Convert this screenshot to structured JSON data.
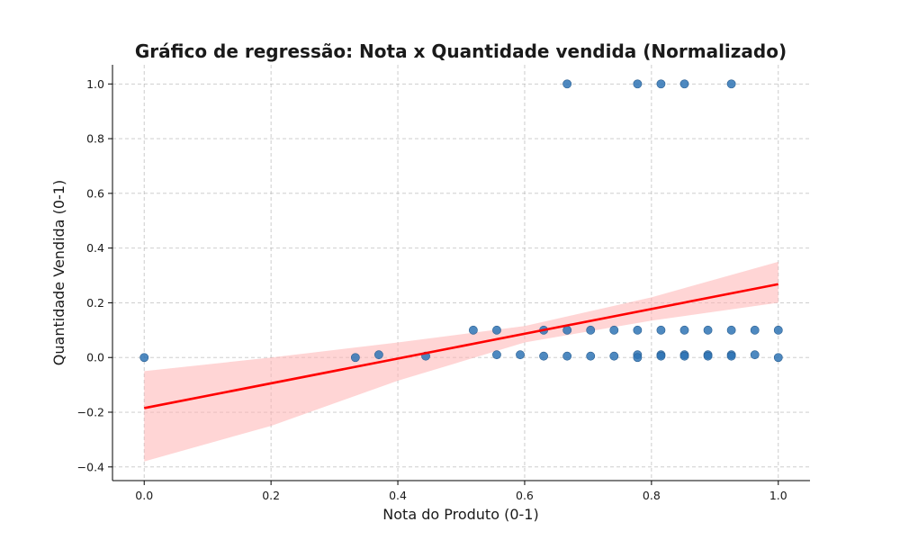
{
  "chart_data": {
    "type": "scatter",
    "title": "Gráfico de regressão: Nota x Quantidade vendida (Normalizado)",
    "xlabel": "Nota do Produto (0-1)",
    "ylabel": "Quantidade Vendida (0-1)",
    "xlim": [
      -0.05,
      1.05
    ],
    "ylim": [
      -0.45,
      1.07
    ],
    "xticks": [
      0.0,
      0.2,
      0.4,
      0.6,
      0.8,
      1.0
    ],
    "xtick_labels": [
      "0.0",
      "0.2",
      "0.4",
      "0.6",
      "0.8",
      "1.0"
    ],
    "yticks": [
      -0.4,
      -0.2,
      0.0,
      0.2,
      0.4,
      0.6,
      0.8,
      1.0
    ],
    "ytick_labels": [
      "−0.4",
      "−0.2",
      "0.0",
      "0.2",
      "0.4",
      "0.6",
      "0.8",
      "1.0"
    ],
    "grid": true,
    "colors": {
      "points": "#2f74b5",
      "regression_line": "#ff0000",
      "confidence_band": "#ffb3b3"
    },
    "series": [
      {
        "kind": "points",
        "x": [
          0.0,
          0.333,
          0.37,
          0.444,
          0.519,
          0.556,
          0.556,
          0.593,
          0.63,
          0.63,
          0.667,
          0.667,
          0.667,
          0.704,
          0.704,
          0.741,
          0.741,
          0.778,
          0.778,
          0.778,
          0.778,
          0.815,
          0.815,
          0.815,
          0.815,
          0.852,
          0.852,
          0.852,
          0.852,
          0.889,
          0.889,
          0.889,
          0.926,
          0.926,
          0.926,
          0.926,
          0.963,
          0.963,
          1.0,
          1.0
        ],
        "y": [
          0.0,
          0.0,
          0.01,
          0.005,
          0.1,
          0.1,
          0.01,
          0.01,
          0.1,
          0.005,
          0.1,
          0.005,
          1.0,
          0.1,
          0.005,
          0.1,
          0.005,
          0.1,
          0.01,
          0.0,
          1.0,
          0.1,
          0.01,
          0.005,
          1.0,
          0.1,
          0.01,
          0.005,
          1.0,
          0.1,
          0.01,
          0.005,
          0.1,
          0.01,
          0.005,
          1.0,
          0.1,
          0.01,
          0.1,
          0.0
        ]
      },
      {
        "kind": "regression",
        "x": [
          0.0,
          1.0
        ],
        "y": [
          -0.185,
          0.268
        ]
      },
      {
        "kind": "confidence_band",
        "x": [
          0.0,
          0.2,
          0.4,
          0.6,
          0.8,
          1.0
        ],
        "lower": [
          -0.38,
          -0.25,
          -0.085,
          0.055,
          0.135,
          0.2
        ],
        "upper": [
          -0.05,
          0.0,
          0.055,
          0.115,
          0.22,
          0.35
        ]
      }
    ]
  }
}
